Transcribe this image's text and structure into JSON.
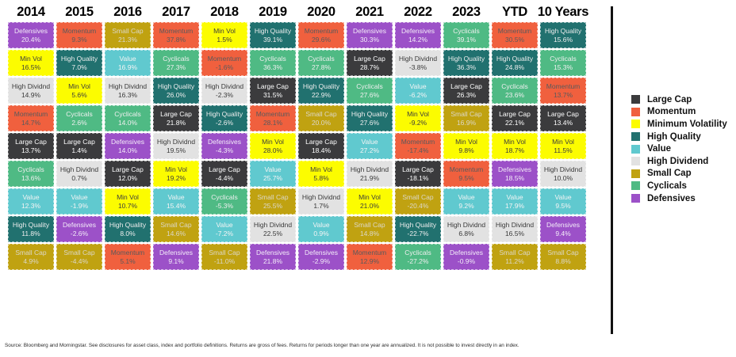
{
  "page": {
    "background": "#ffffff",
    "divider_color": "#111111"
  },
  "factors": {
    "large_cap": {
      "legend_label": "Large Cap",
      "cell_label": "Large Cap",
      "color": "#3B3B3D",
      "text_color": "#FFFFFF"
    },
    "momentum": {
      "legend_label": "Momentum",
      "cell_label": "Momentum",
      "color": "#F0603E",
      "text_color": "#595A5C"
    },
    "min_vol": {
      "legend_label": "Minimum Volatility",
      "cell_label": "Min Vol",
      "color": "#FCFC00",
      "text_color": "#3D3D3D"
    },
    "high_quality": {
      "legend_label": "High Quality",
      "cell_label": "High Quality",
      "color": "#21716F",
      "text_color": "#EDEDED"
    },
    "value": {
      "legend_label": "Value",
      "cell_label": "Value",
      "color": "#60C9CF",
      "text_color": "#F4F4F4"
    },
    "high_dividend": {
      "legend_label": "High Dividend",
      "cell_label": "High Dividnd",
      "color": "#E2E2E2",
      "text_color": "#3A3A3A"
    },
    "small_cap": {
      "legend_label": "Small Cap",
      "cell_label": "Small Cap",
      "color": "#C0A211",
      "text_color": "#DCD8CA"
    },
    "cyclicals": {
      "legend_label": "Cyclicals",
      "cell_label": "Cyclicals",
      "color": "#4FBA84",
      "text_color": "#EFEFEF"
    },
    "defensives": {
      "legend_label": "Defensives",
      "cell_label": "Defensives",
      "color": "#9C51C8",
      "text_color": "#F3ECF8"
    }
  },
  "legend_order": [
    "large_cap",
    "momentum",
    "min_vol",
    "high_quality",
    "value",
    "high_dividend",
    "small_cap",
    "cyclicals",
    "defensives"
  ],
  "chart_data": {
    "type": "table",
    "description": "Periodic table of annual factor/style index returns (%), each column sorted descending",
    "value_unit": "%",
    "columns": [
      {
        "label": "2014",
        "cells": [
          [
            "defensives",
            20.4
          ],
          [
            "min_vol",
            16.5
          ],
          [
            "high_dividend",
            14.9
          ],
          [
            "momentum",
            14.7
          ],
          [
            "large_cap",
            13.7
          ],
          [
            "cyclicals",
            13.6
          ],
          [
            "value",
            12.3
          ],
          [
            "high_quality",
            11.8
          ],
          [
            "small_cap",
            4.9
          ]
        ]
      },
      {
        "label": "2015",
        "cells": [
          [
            "momentum",
            9.3
          ],
          [
            "high_quality",
            7.0
          ],
          [
            "min_vol",
            5.6
          ],
          [
            "cyclicals",
            2.6
          ],
          [
            "large_cap",
            1.4
          ],
          [
            "high_dividend",
            0.7
          ],
          [
            "value",
            -1.9
          ],
          [
            "defensives",
            -2.6
          ],
          [
            "small_cap",
            -4.4
          ]
        ]
      },
      {
        "label": "2016",
        "cells": [
          [
            "small_cap",
            21.3
          ],
          [
            "value",
            16.9
          ],
          [
            "high_dividend",
            16.3
          ],
          [
            "cyclicals",
            14.0
          ],
          [
            "defensives",
            14.0
          ],
          [
            "large_cap",
            12.0
          ],
          [
            "min_vol",
            10.7
          ],
          [
            "high_quality",
            8.0
          ],
          [
            "momentum",
            5.1
          ]
        ]
      },
      {
        "label": "2017",
        "cells": [
          [
            "momentum",
            37.8
          ],
          [
            "cyclicals",
            27.3
          ],
          [
            "high_quality",
            26.0
          ],
          [
            "large_cap",
            21.8
          ],
          [
            "high_dividend",
            19.5
          ],
          [
            "min_vol",
            19.2
          ],
          [
            "value",
            15.4
          ],
          [
            "small_cap",
            14.6
          ],
          [
            "defensives",
            9.1
          ]
        ]
      },
      {
        "label": "2018",
        "cells": [
          [
            "min_vol",
            1.5
          ],
          [
            "momentum",
            -1.6
          ],
          [
            "high_dividend",
            -2.3
          ],
          [
            "high_quality",
            -2.6
          ],
          [
            "defensives",
            -4.3
          ],
          [
            "large_cap",
            -4.4
          ],
          [
            "cyclicals",
            -5.3
          ],
          [
            "value",
            -7.2
          ],
          [
            "small_cap",
            -11.0
          ]
        ]
      },
      {
        "label": "2019",
        "cells": [
          [
            "high_quality",
            39.1
          ],
          [
            "cyclicals",
            36.3
          ],
          [
            "large_cap",
            31.5
          ],
          [
            "momentum",
            28.1
          ],
          [
            "min_vol",
            28.0
          ],
          [
            "value",
            25.7
          ],
          [
            "small_cap",
            25.5
          ],
          [
            "high_dividend",
            22.5
          ],
          [
            "defensives",
            21.8
          ]
        ]
      },
      {
        "label": "2020",
        "cells": [
          [
            "momentum",
            29.6
          ],
          [
            "cyclicals",
            27.8
          ],
          [
            "high_quality",
            22.9
          ],
          [
            "small_cap",
            20.0
          ],
          [
            "large_cap",
            18.4
          ],
          [
            "min_vol",
            5.8
          ],
          [
            "high_dividend",
            1.7
          ],
          [
            "value",
            0.9
          ],
          [
            "defensives",
            -2.9
          ]
        ]
      },
      {
        "label": "2021",
        "cells": [
          [
            "defensives",
            30.3
          ],
          [
            "large_cap",
            28.7
          ],
          [
            "cyclicals",
            27.6
          ],
          [
            "high_quality",
            27.6
          ],
          [
            "value",
            27.2
          ],
          [
            "high_dividend",
            21.9
          ],
          [
            "min_vol",
            21.0
          ],
          [
            "small_cap",
            14.8
          ],
          [
            "momentum",
            12.9
          ]
        ]
      },
      {
        "label": "2022",
        "cells": [
          [
            "defensives",
            14.2
          ],
          [
            "high_dividend",
            -3.8
          ],
          [
            "value",
            -6.2
          ],
          [
            "min_vol",
            -9.2
          ],
          [
            "momentum",
            -17.4
          ],
          [
            "large_cap",
            -18.1
          ],
          [
            "small_cap",
            -20.4
          ],
          [
            "high_quality",
            -22.7
          ],
          [
            "cyclicals",
            -27.2
          ]
        ]
      },
      {
        "label": "2023",
        "cells": [
          [
            "cyclicals",
            39.1
          ],
          [
            "high_quality",
            36.3
          ],
          [
            "large_cap",
            26.3
          ],
          [
            "small_cap",
            16.9
          ],
          [
            "min_vol",
            9.8
          ],
          [
            "momentum",
            9.5
          ],
          [
            "value",
            9.2
          ],
          [
            "high_dividend",
            6.8
          ],
          [
            "defensives",
            -0.9
          ]
        ]
      },
      {
        "label": "YTD",
        "cells": [
          [
            "momentum",
            30.5
          ],
          [
            "high_quality",
            24.8
          ],
          [
            "cyclicals",
            23.6
          ],
          [
            "large_cap",
            22.1
          ],
          [
            "min_vol",
            18.7
          ],
          [
            "defensives",
            18.5
          ],
          [
            "value",
            17.9
          ],
          [
            "high_dividend",
            16.5
          ],
          [
            "small_cap",
            11.2
          ]
        ]
      },
      {
        "label": "10 Years",
        "cells": [
          [
            "high_quality",
            15.6
          ],
          [
            "cyclicals",
            15.3
          ],
          [
            "momentum",
            13.7
          ],
          [
            "large_cap",
            13.4
          ],
          [
            "min_vol",
            11.5
          ],
          [
            "high_dividend",
            10.0
          ],
          [
            "value",
            9.5
          ],
          [
            "defensives",
            9.4
          ],
          [
            "small_cap",
            8.8
          ]
        ]
      }
    ]
  },
  "footer": {
    "text": "Source: Bloomberg and Morningstar. See disclosures for asset class, index and portfolio definitions. Returns are gross of fees. Returns for periods longer than one year are annualized. It is not possible to invest directly in an index."
  }
}
